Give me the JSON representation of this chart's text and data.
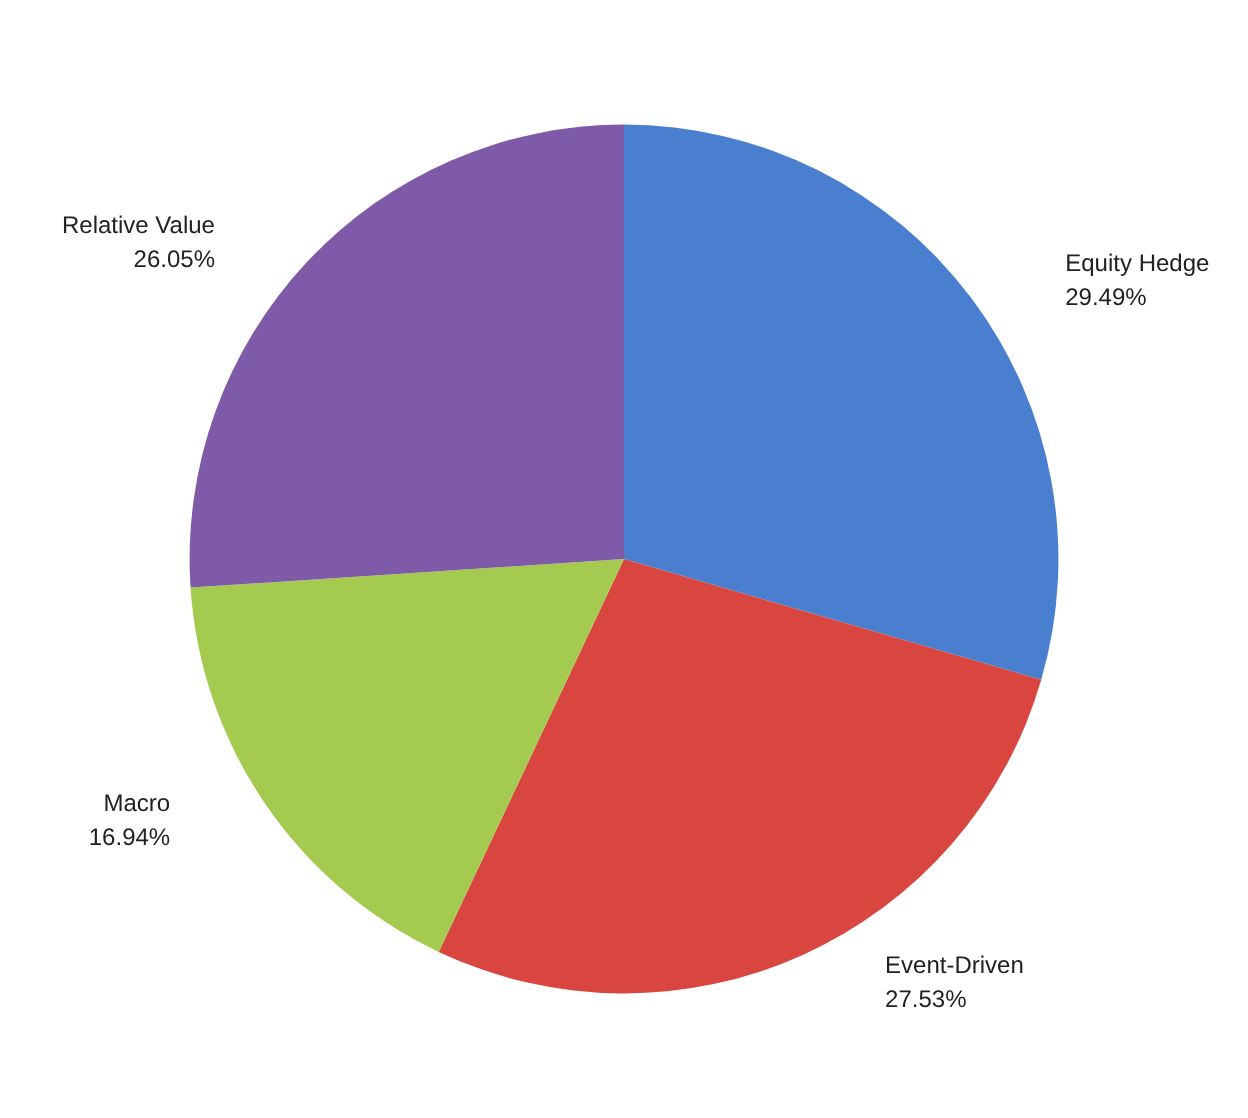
{
  "chart_data": {
    "type": "pie",
    "categories": [
      "Equity Hedge",
      "Event-Driven",
      "Macro",
      "Relative Value"
    ],
    "values": [
      29.49,
      27.53,
      16.94,
      26.05
    ],
    "value_labels": [
      "29.49%",
      "27.53%",
      "16.94%",
      "26.05%"
    ],
    "colors": [
      "#4a7fd0",
      "#d9453f",
      "#a4cb4f",
      "#7f5aa8"
    ],
    "legend": false
  }
}
